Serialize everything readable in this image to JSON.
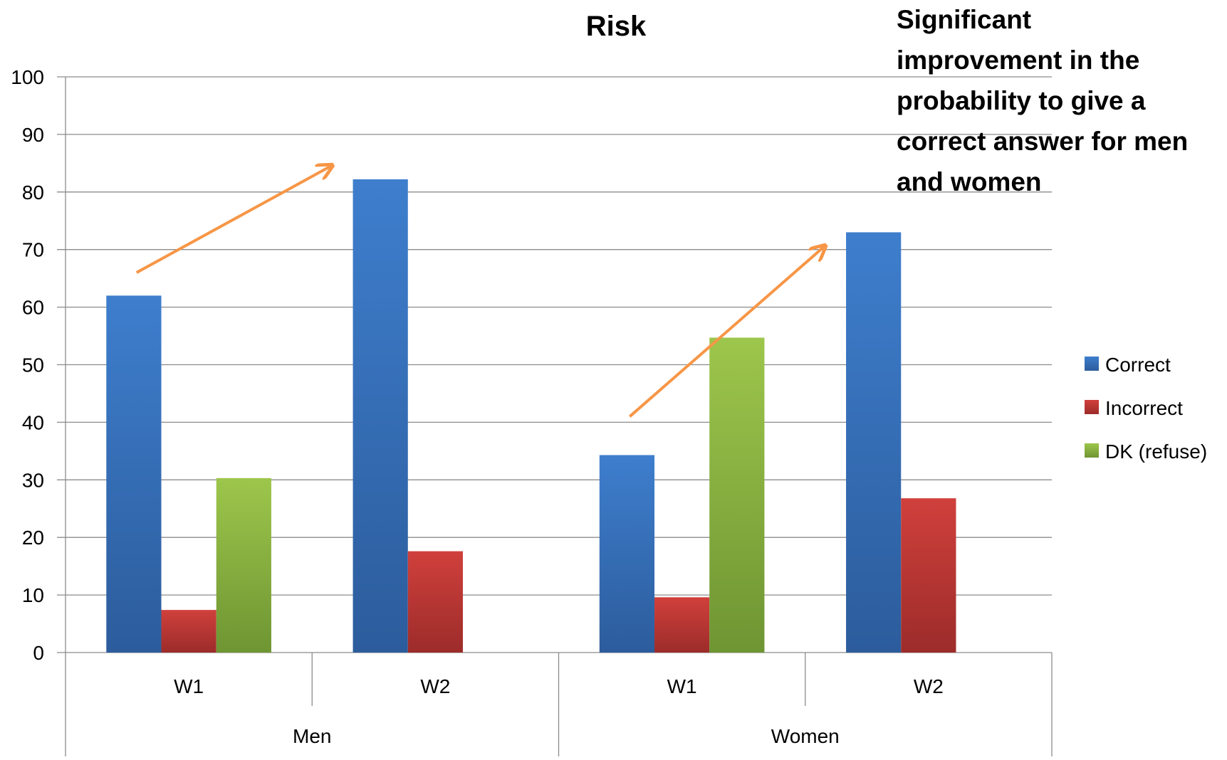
{
  "chart_data": {
    "type": "bar",
    "title": "Risk",
    "annotation": [
      "Significant",
      "improvement in the",
      "probability to give a",
      "correct answer for men",
      "and women"
    ],
    "groups": [
      {
        "label": "Men",
        "categories": [
          "W1",
          "W2"
        ]
      },
      {
        "label": "Women",
        "categories": [
          "W1",
          "W2"
        ]
      }
    ],
    "categories": [
      "Men W1",
      "Men W2",
      "Women W1",
      "Women W2"
    ],
    "series": [
      {
        "name": "Correct",
        "color": "#3d7cc9",
        "values": [
          62,
          82.2,
          34.3,
          73
        ]
      },
      {
        "name": "Incorrect",
        "color": "#c43a36",
        "values": [
          7.4,
          17.6,
          9.6,
          26.8
        ]
      },
      {
        "name": "DK (refuse)",
        "color": "#8db847",
        "values": [
          30.3,
          null,
          54.7,
          null
        ]
      }
    ],
    "ylim": [
      0,
      100
    ],
    "yticks": [
      0,
      10,
      20,
      30,
      40,
      50,
      60,
      70,
      80,
      90,
      100
    ],
    "grid": true,
    "legend_position": "right",
    "arrows": [
      {
        "group": "Men",
        "from": [
          0,
          66
        ],
        "to": [
          1,
          84.5
        ],
        "color": "#f79646"
      },
      {
        "group": "Women",
        "from": [
          0,
          41
        ],
        "to": [
          1,
          70.5
        ],
        "color": "#f79646"
      }
    ]
  }
}
